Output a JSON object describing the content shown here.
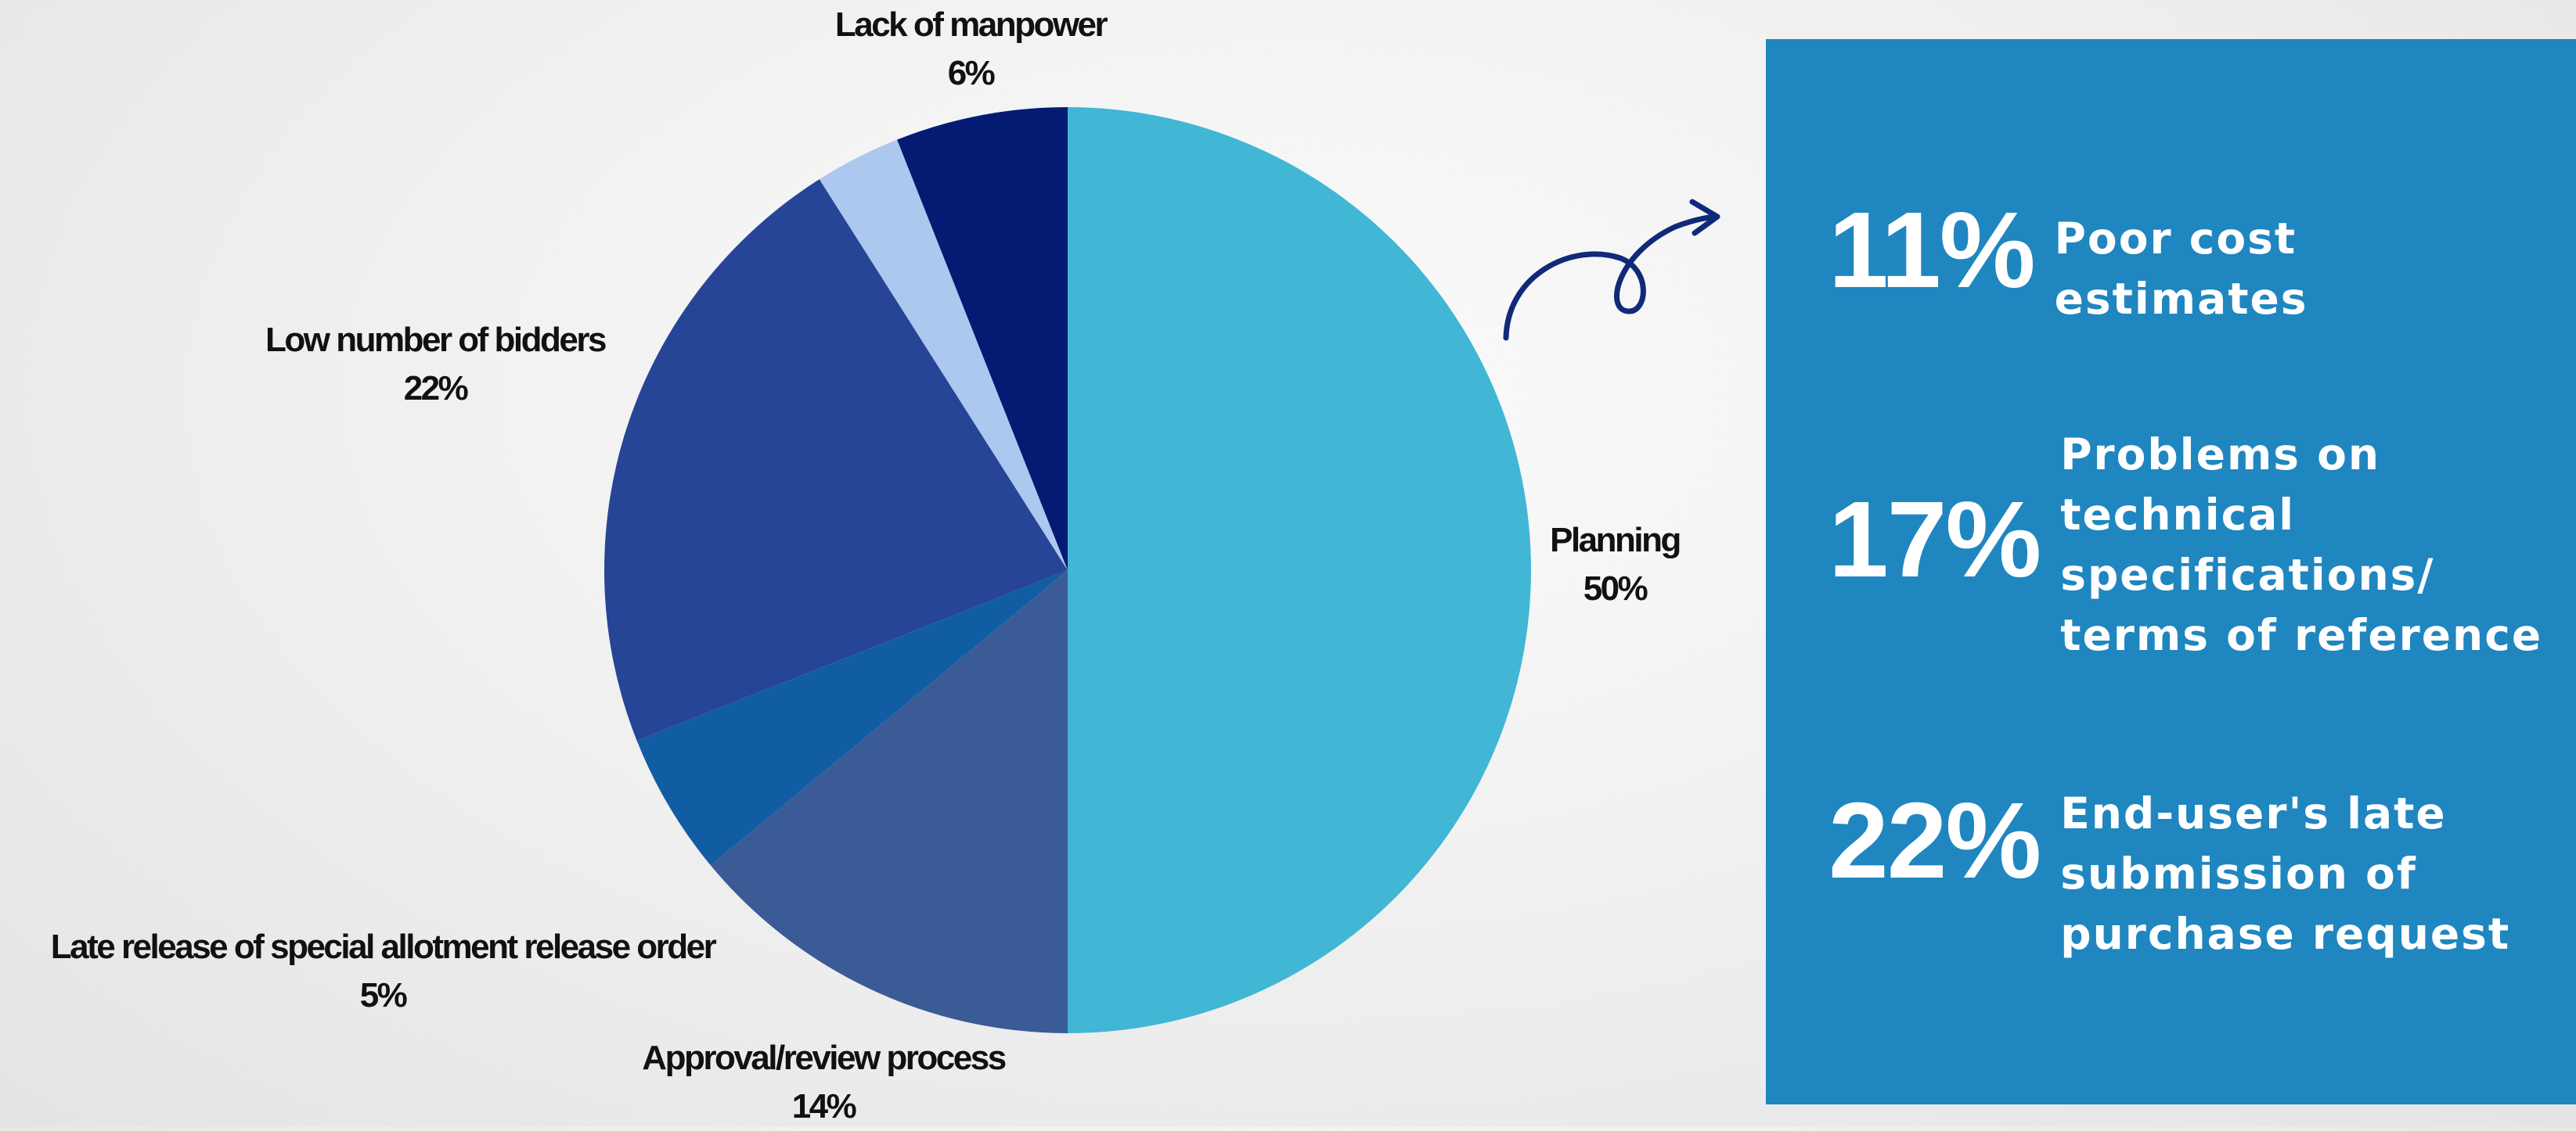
{
  "chart_data": {
    "type": "pie",
    "categories": [
      "Planning",
      "Approval/review process",
      "Late release of special allotment release order",
      "Low number of bidders",
      "",
      "Lack of manpower"
    ],
    "values": [
      50,
      14,
      5,
      22,
      3,
      6
    ],
    "labels": [
      "50%",
      "14%",
      "5%",
      "22%",
      "",
      "6%"
    ],
    "colors": [
      "#41b6d5",
      "#3b5b97",
      "#115da4",
      "#264597",
      "#adc8ef",
      "#041b73"
    ],
    "start_angle_deg": 0,
    "direction": "clockwise"
  },
  "side_panel": {
    "background": "#1f86c0",
    "items": [
      {
        "value": "11%",
        "text": "Poor cost\nestimates"
      },
      {
        "value": "17%",
        "text": "Problems on\ntechnical\nspecifications/\nterms of reference"
      },
      {
        "value": "22%",
        "text": "End-user's late\nsubmission of\npurchase request"
      }
    ]
  },
  "arrow_color": "#0f2a78"
}
